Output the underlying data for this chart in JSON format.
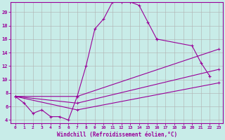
{
  "xlabel": "Windchill (Refroidissement éolien,°C)",
  "bg_color": "#c8ece8",
  "line_color": "#990099",
  "grid_color": "#b0b0b0",
  "xlim": [
    -0.5,
    23.5
  ],
  "ylim": [
    3.5,
    21.5
  ],
  "xticks": [
    0,
    1,
    2,
    3,
    4,
    5,
    6,
    7,
    8,
    9,
    10,
    11,
    12,
    13,
    14,
    15,
    16,
    17,
    18,
    19,
    20,
    21,
    22,
    23
  ],
  "yticks": [
    4,
    6,
    8,
    10,
    12,
    14,
    16,
    18,
    20
  ],
  "main_curve": {
    "x": [
      0,
      1,
      2,
      3,
      4,
      5,
      6,
      7,
      8,
      9,
      10,
      11,
      12,
      13,
      14,
      15,
      16
    ],
    "y": [
      7.5,
      6.5,
      5.0,
      5.5,
      4.5,
      4.5,
      4.0,
      7.5,
      12.0,
      17.5,
      19.0,
      21.5,
      21.5,
      21.5,
      21.0,
      18.5,
      16.0
    ]
  },
  "end_curve": {
    "x": [
      16,
      20,
      21,
      22
    ],
    "y": [
      16.0,
      15.0,
      12.5,
      10.5
    ]
  },
  "line1": {
    "x": [
      0,
      7,
      23
    ],
    "y": [
      7.5,
      7.5,
      14.5
    ]
  },
  "line2": {
    "x": [
      0,
      7,
      23
    ],
    "y": [
      7.5,
      6.5,
      11.5
    ]
  },
  "line3": {
    "x": [
      0,
      7,
      23
    ],
    "y": [
      7.5,
      5.5,
      9.5
    ]
  }
}
